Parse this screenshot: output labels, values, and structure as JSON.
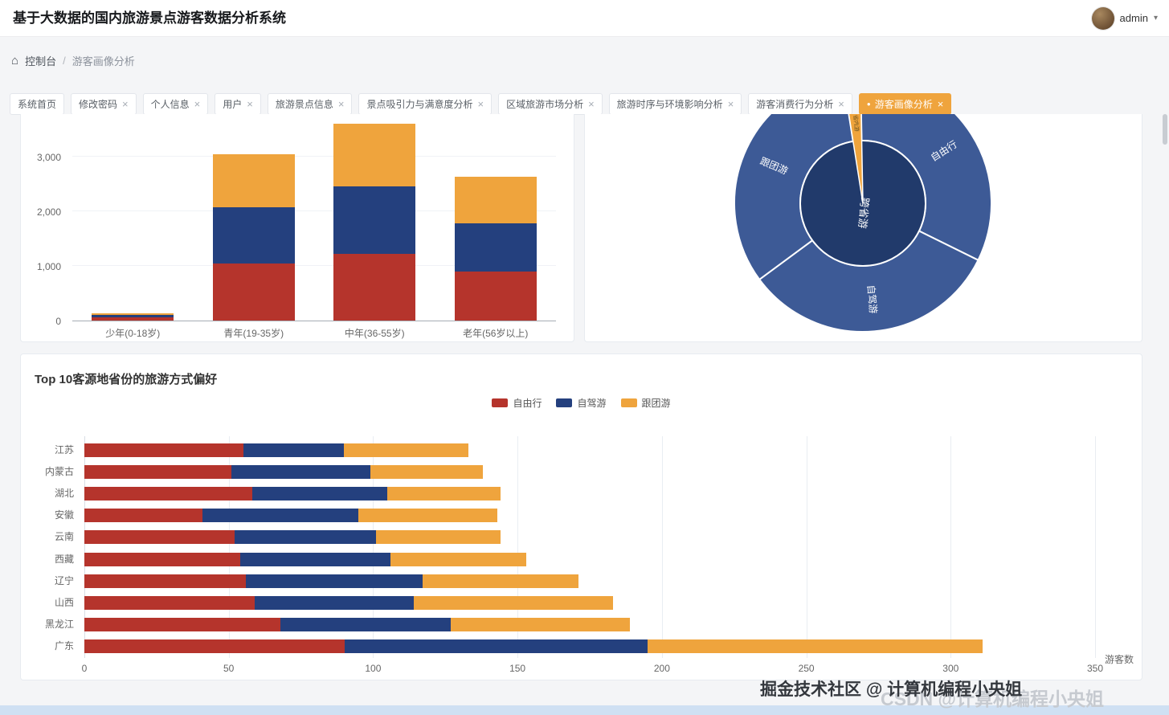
{
  "header": {
    "title": "基于大数据的国内旅游景点游客数据分析系统",
    "user": "admin",
    "chevron": "▾"
  },
  "breadcrumb": {
    "home_icon": "⌂",
    "root": "控制台",
    "separator": "/",
    "current": "游客画像分析"
  },
  "tabs": [
    {
      "label": "系统首页",
      "closable": false,
      "active": false
    },
    {
      "label": "修改密码",
      "closable": true,
      "active": false
    },
    {
      "label": "个人信息",
      "closable": true,
      "active": false
    },
    {
      "label": "用户",
      "closable": true,
      "active": false
    },
    {
      "label": "旅游景点信息",
      "closable": true,
      "active": false
    },
    {
      "label": "景点吸引力与满意度分析",
      "closable": true,
      "active": false
    },
    {
      "label": "区域旅游市场分析",
      "closable": true,
      "active": false
    },
    {
      "label": "旅游时序与环境影响分析",
      "closable": true,
      "active": false
    },
    {
      "label": "游客消费行为分析",
      "closable": true,
      "active": false
    },
    {
      "label": "游客画像分析",
      "closable": true,
      "active": true
    }
  ],
  "colors": {
    "tab_active": "#efa43d",
    "free": "#b5342c",
    "drive": "#24407e",
    "group": "#efa43d"
  },
  "watermark": {
    "primary": "掘金技术社区 @ 计算机编程小央姐",
    "secondary": "CSDN @计算机编程小央姐"
  },
  "chart_data": [
    {
      "type": "bar",
      "stacked": true,
      "orientation": "vertical",
      "categories": [
        "少年(0-18岁)",
        "青年(19-35岁)",
        "中年(36-55岁)",
        "老年(56岁以上)"
      ],
      "series": [
        {
          "name": "自由行",
          "color": "#b5342c",
          "values": [
            60,
            1050,
            1220,
            900
          ]
        },
        {
          "name": "自驾游",
          "color": "#24407e",
          "values": [
            40,
            1020,
            1230,
            880
          ]
        },
        {
          "name": "跟团游",
          "color": "#efa43d",
          "values": [
            40,
            980,
            1150,
            850
          ]
        }
      ],
      "ylim": [
        0,
        3700
      ],
      "yticks": [
        0,
        1000,
        2000,
        3000
      ],
      "grid": true
    },
    {
      "type": "pie",
      "subtype": "sunburst",
      "accent_name": "省内游",
      "inner_ring": [
        {
          "name": "跨省游",
          "value": 97.8
        },
        {
          "name": "省内游",
          "value": 2.2
        }
      ],
      "outer_ring": [
        {
          "name": "省内游",
          "value": 2.2
        },
        {
          "name": "自由行",
          "value": 32.6
        },
        {
          "name": "自驾游",
          "value": 32.6
        },
        {
          "name": "跟团游",
          "value": 32.6
        }
      ],
      "colors": {
        "ring": "#3d5a96",
        "center": "#213a6b",
        "accent": "#f0a43c"
      },
      "start_angle_deg": 351
    },
    {
      "type": "bar",
      "stacked": true,
      "orientation": "horizontal",
      "title": "Top 10客源地省份的旅游方式偏好",
      "categories": [
        "江苏",
        "内蒙古",
        "湖北",
        "安徽",
        "云南",
        "西藏",
        "辽宁",
        "山西",
        "黑龙江",
        "广东"
      ],
      "series": [
        {
          "name": "自由行",
          "color": "#b5342c",
          "values": [
            55,
            51,
            58,
            41,
            52,
            54,
            56,
            59,
            68,
            90
          ]
        },
        {
          "name": "自驾游",
          "color": "#24407e",
          "values": [
            35,
            48,
            47,
            54,
            49,
            52,
            61,
            55,
            59,
            105
          ]
        },
        {
          "name": "跟团游",
          "color": "#efa43d",
          "values": [
            43,
            39,
            39,
            48,
            43,
            47,
            54,
            69,
            62,
            116
          ]
        }
      ],
      "xlim": [
        0,
        350
      ],
      "xticks": [
        0,
        50,
        100,
        150,
        200,
        250,
        300,
        350
      ],
      "xlabel": "游客数",
      "legend_position": "top",
      "grid": true
    }
  ]
}
